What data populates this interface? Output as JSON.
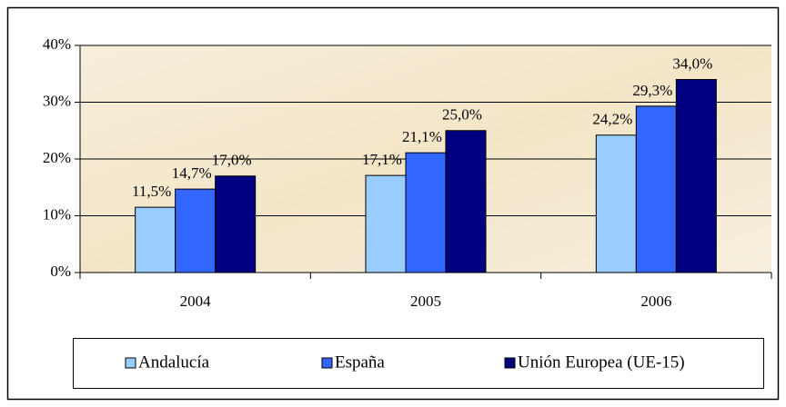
{
  "chart_data": {
    "type": "bar",
    "categories": [
      "2004",
      "2005",
      "2006"
    ],
    "series": [
      {
        "name": "Andalucía",
        "color": "#99ccff",
        "values": [
          11.5,
          17.1,
          24.2
        ],
        "value_labels": [
          "11,5%",
          "17,1%",
          "24,2%"
        ]
      },
      {
        "name": "España",
        "color": "#3366ff",
        "values": [
          14.7,
          21.1,
          29.3
        ],
        "value_labels": [
          "14,7%",
          "21,1%",
          "29,3%"
        ]
      },
      {
        "name": "Unión Europea (UE-15)",
        "color": "#000080",
        "values": [
          17.0,
          25.0,
          34.0
        ],
        "value_labels": [
          "17,0%",
          "25,0%",
          "34,0%"
        ]
      }
    ],
    "ylim": [
      0,
      40
    ],
    "yticks": [
      {
        "value": 0,
        "label": "0%"
      },
      {
        "value": 10,
        "label": "10%"
      },
      {
        "value": 20,
        "label": "20%"
      },
      {
        "value": 30,
        "label": "30%"
      },
      {
        "value": 40,
        "label": "40%"
      }
    ],
    "grid": true,
    "legend": "bottom"
  }
}
